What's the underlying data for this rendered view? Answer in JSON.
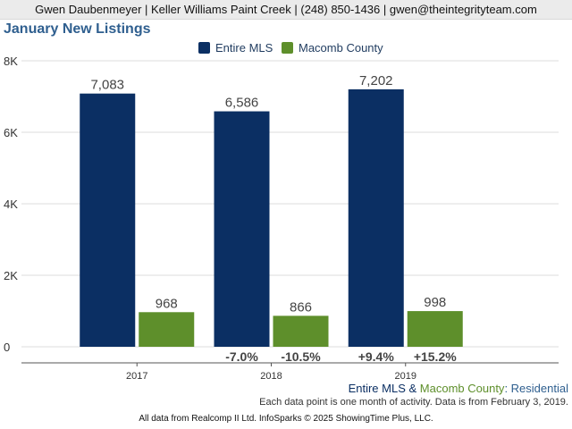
{
  "header": {
    "text": "Gwen Daubenmeyer | Keller Williams Paint Creek | (248) 850-1436 | gwen@theintegrityteam.com"
  },
  "colors": {
    "entire_mls": "#0b2f63",
    "macomb": "#5e8f2b",
    "title": "#2f5f8f",
    "grid": "#dcdcdc",
    "axis_text": "#333333",
    "label_text": "#444444"
  },
  "legend": {
    "entire_mls": "Entire MLS",
    "macomb": "Macomb County"
  },
  "chart_data": {
    "type": "bar",
    "title": "January New Listings",
    "xlabel": "",
    "ylabel": "",
    "categories": [
      "2017",
      "2018",
      "2019"
    ],
    "series": [
      {
        "name": "Entire MLS",
        "values": [
          7083,
          6586,
          7202
        ],
        "labels": [
          "7,083",
          "6,586",
          "7,202"
        ]
      },
      {
        "name": "Macomb County",
        "values": [
          968,
          866,
          998
        ],
        "labels": [
          "968",
          "866",
          "998"
        ]
      }
    ],
    "yoy_change": [
      {
        "entire_mls": "",
        "macomb": ""
      },
      {
        "entire_mls": "-7.0%",
        "macomb": "-10.5%"
      },
      {
        "entire_mls": "+9.4%",
        "macomb": "+15.2%"
      }
    ],
    "ylim": [
      0,
      8000
    ],
    "yticks": [
      0,
      2000,
      4000,
      6000,
      8000
    ],
    "ytick_labels": [
      "0",
      "2K",
      "4K",
      "6K",
      "8K"
    ],
    "grid": true,
    "legend_position": "top-center"
  },
  "footer": {
    "series_entire": "Entire MLS",
    "amp": " & ",
    "series_macomb": "Macomb County",
    "colon": ": ",
    "property_type": "Residential",
    "note": "Each data point is one month of activity. Data is from February 3, 2019.",
    "credits": "All data from Realcomp II Ltd. InfoSparks © 2025 ShowingTime Plus, LLC."
  }
}
